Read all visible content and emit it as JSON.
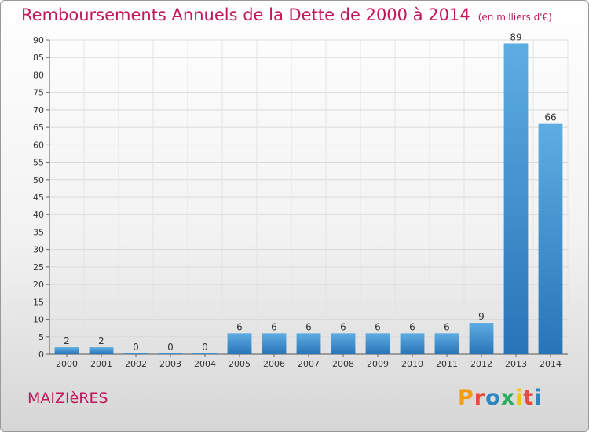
{
  "header": {
    "title": "Remboursements Annuels de la Dette de 2000 à 2014",
    "subtitle": "(en milliers d'€)"
  },
  "footer": {
    "city": "MAIZIèRES",
    "logo_text": "Proxiti",
    "logo_colors": [
      "#f39c12",
      "#e84c3d",
      "#2e86c1",
      "#27ae60",
      "#f1c40f",
      "#e84c3d",
      "#2e86c1"
    ]
  },
  "colors": {
    "title": "#c2185b",
    "bar_light": "#5dade2",
    "bar_dark": "#2874b8"
  },
  "chart_data": {
    "type": "bar",
    "categories": [
      "2000",
      "2001",
      "2002",
      "2003",
      "2004",
      "2005",
      "2006",
      "2007",
      "2008",
      "2009",
      "2010",
      "2011",
      "2012",
      "2013",
      "2014"
    ],
    "values": [
      2,
      2,
      0,
      0,
      0,
      6,
      6,
      6,
      6,
      6,
      6,
      6,
      9,
      89,
      66
    ],
    "ylim": [
      0,
      90
    ],
    "yticks": [
      0,
      5,
      10,
      15,
      20,
      25,
      30,
      35,
      40,
      45,
      50,
      55,
      60,
      65,
      70,
      75,
      80,
      85,
      90
    ],
    "grid": true,
    "legend": false
  }
}
